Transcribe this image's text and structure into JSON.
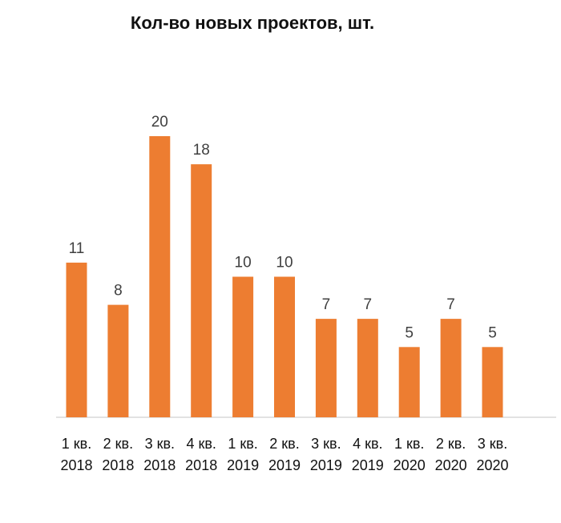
{
  "chart_data": {
    "type": "bar",
    "title": "Кол-во новых проектов, шт.",
    "categories": [
      [
        "1 кв.",
        "2018"
      ],
      [
        "2 кв.",
        "2018"
      ],
      [
        "3 кв.",
        "2018"
      ],
      [
        "4 кв.",
        "2018"
      ],
      [
        "1 кв.",
        "2019"
      ],
      [
        "2 кв.",
        "2019"
      ],
      [
        "3 кв.",
        "2019"
      ],
      [
        "4 кв.",
        "2019"
      ],
      [
        "1 кв.",
        "2020"
      ],
      [
        "2 кв.",
        "2020"
      ],
      [
        "3 кв.",
        "2020"
      ]
    ],
    "values": [
      11,
      8,
      20,
      18,
      10,
      10,
      7,
      7,
      5,
      7,
      5
    ],
    "ylim": [
      0,
      20
    ],
    "grid": false,
    "data_labels": true,
    "bar_color": "#ED7D31"
  }
}
